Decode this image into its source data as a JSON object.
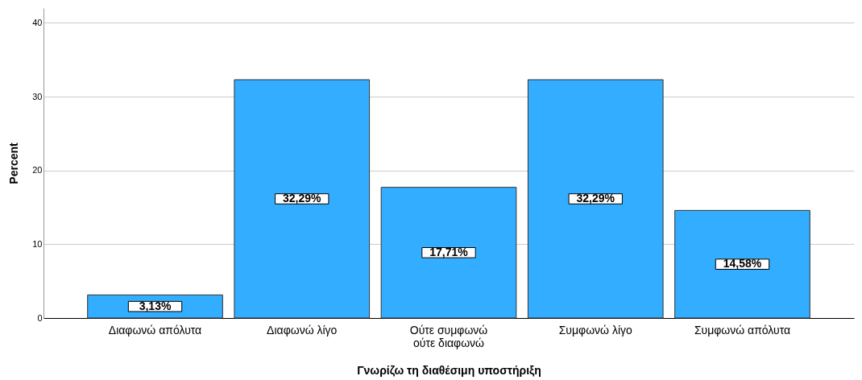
{
  "chart_data": {
    "type": "bar",
    "xlabel": "Γνωρίζω τη διαθέσιμη υποστήριξη",
    "ylabel": "Percent",
    "categories": [
      "Διαφωνώ απόλυτα",
      "Διαφωνώ λίγο",
      "Ούτε συμφωνώ\nούτε διαφωνώ",
      "Συμφωνώ λίγο",
      "Συμφωνώ απόλυτα"
    ],
    "values": [
      3.13,
      32.29,
      17.71,
      32.29,
      14.58
    ],
    "value_labels": [
      "3,13%",
      "32,29%",
      "17,71%",
      "32,29%",
      "14,58%"
    ],
    "color": "#33adff",
    "ylim": [
      0,
      42
    ],
    "yticks": [
      0,
      10,
      20,
      30,
      40
    ],
    "grid": "y"
  }
}
